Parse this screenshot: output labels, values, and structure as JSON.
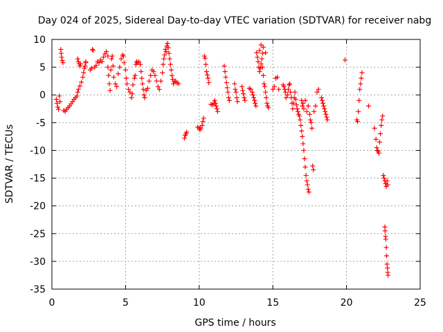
{
  "chart_data": {
    "type": "scatter",
    "title": "Day 024 of 2025, Sidereal Day-to-day VTEC variation (SDTVAR) for receiver nabg",
    "xlabel": "GPS time / hours",
    "ylabel": "SDTVAR / TECUs",
    "xlim": [
      0,
      25
    ],
    "ylim": [
      -35,
      10
    ],
    "xticks": [
      0,
      5,
      10,
      15,
      20,
      25
    ],
    "yticks": [
      -35,
      -30,
      -25,
      -20,
      -15,
      -10,
      -5,
      0,
      5,
      10
    ],
    "grid": true,
    "marker": "+",
    "color": "#ff0000",
    "series": [
      {
        "name": "SDTVAR",
        "points": [
          [
            0.3,
            -0.8
          ],
          [
            0.35,
            -1.5
          ],
          [
            0.4,
            -2.2
          ],
          [
            0.45,
            -2.6
          ],
          [
            0.5,
            -0.2
          ],
          [
            0.55,
            -1.2
          ],
          [
            0.6,
            8.2
          ],
          [
            0.63,
            7.5
          ],
          [
            0.66,
            6.8
          ],
          [
            0.7,
            6.2
          ],
          [
            0.75,
            5.8
          ],
          [
            0.8,
            -2.8
          ],
          [
            0.9,
            -3.0
          ],
          [
            1.0,
            -2.6
          ],
          [
            1.1,
            -2.3
          ],
          [
            1.2,
            -2.0
          ],
          [
            1.3,
            -1.6
          ],
          [
            1.4,
            -1.2
          ],
          [
            1.5,
            -0.8
          ],
          [
            1.6,
            -0.5
          ],
          [
            1.7,
            -0.2
          ],
          [
            1.75,
            6.5
          ],
          [
            1.8,
            6.0
          ],
          [
            1.85,
            5.6
          ],
          [
            1.9,
            5.2
          ],
          [
            1.95,
            5.6
          ],
          [
            1.75,
            0.5
          ],
          [
            1.8,
            1.0
          ],
          [
            1.9,
            1.6
          ],
          [
            2.0,
            2.3
          ],
          [
            2.1,
            3.2
          ],
          [
            2.15,
            4.0
          ],
          [
            2.2,
            4.8
          ],
          [
            2.25,
            5.2
          ],
          [
            2.3,
            5.8
          ],
          [
            2.3,
            6.0
          ],
          [
            2.6,
            4.5
          ],
          [
            2.7,
            4.8
          ],
          [
            2.75,
            8.2
          ],
          [
            2.8,
            8.0
          ],
          [
            2.9,
            5.0
          ],
          [
            3.0,
            5.3
          ],
          [
            3.1,
            6.0
          ],
          [
            3.2,
            5.8
          ],
          [
            3.3,
            6.3
          ],
          [
            3.4,
            6.0
          ],
          [
            3.5,
            6.8
          ],
          [
            3.6,
            7.4
          ],
          [
            3.7,
            7.8
          ],
          [
            3.8,
            7.0
          ],
          [
            3.8,
            5.0
          ],
          [
            3.85,
            3.5
          ],
          [
            3.9,
            2.0
          ],
          [
            3.95,
            0.8
          ],
          [
            4.0,
            4.5
          ],
          [
            4.05,
            6.5
          ],
          [
            4.1,
            7.0
          ],
          [
            4.15,
            5.2
          ],
          [
            4.2,
            3.2
          ],
          [
            4.3,
            2.0
          ],
          [
            4.4,
            1.5
          ],
          [
            4.5,
            3.8
          ],
          [
            4.6,
            5.0
          ],
          [
            4.7,
            6.5
          ],
          [
            4.8,
            7.2
          ],
          [
            4.85,
            7.0
          ],
          [
            4.9,
            5.8
          ],
          [
            5.0,
            4.5
          ],
          [
            5.05,
            3.0
          ],
          [
            5.1,
            2.0
          ],
          [
            5.2,
            1.0
          ],
          [
            5.3,
            0.5
          ],
          [
            5.4,
            -0.5
          ],
          [
            5.45,
            0.2
          ],
          [
            5.5,
            1.8
          ],
          [
            5.6,
            3.0
          ],
          [
            5.65,
            3.5
          ],
          [
            5.7,
            5.5
          ],
          [
            5.75,
            6.0
          ],
          [
            5.8,
            5.8
          ],
          [
            5.9,
            6.0
          ],
          [
            6.0,
            5.5
          ],
          [
            6.05,
            4.2
          ],
          [
            6.1,
            3.0
          ],
          [
            6.15,
            2.0
          ],
          [
            6.2,
            1.0
          ],
          [
            6.25,
            0.0
          ],
          [
            6.3,
            -0.5
          ],
          [
            6.4,
            0.8
          ],
          [
            6.5,
            1.2
          ],
          [
            6.6,
            2.5
          ],
          [
            6.7,
            3.5
          ],
          [
            6.8,
            4.5
          ],
          [
            6.9,
            4.2
          ],
          [
            7.0,
            3.5
          ],
          [
            7.1,
            2.5
          ],
          [
            7.2,
            1.5
          ],
          [
            7.3,
            1.0
          ],
          [
            7.4,
            2.5
          ],
          [
            7.5,
            4.0
          ],
          [
            7.55,
            5.5
          ],
          [
            7.6,
            6.5
          ],
          [
            7.65,
            7.2
          ],
          [
            7.7,
            8.2
          ],
          [
            7.75,
            7.8
          ],
          [
            7.8,
            8.8
          ],
          [
            7.85,
            9.3
          ],
          [
            7.9,
            8.5
          ],
          [
            7.95,
            7.5
          ],
          [
            8.0,
            6.5
          ],
          [
            8.05,
            5.5
          ],
          [
            8.1,
            4.5
          ],
          [
            8.15,
            3.5
          ],
          [
            8.2,
            2.8
          ],
          [
            8.25,
            2.0
          ],
          [
            8.3,
            2.4
          ],
          [
            8.4,
            2.5
          ],
          [
            8.5,
            2.2
          ],
          [
            8.6,
            2.0
          ],
          [
            9.0,
            -7.8
          ],
          [
            9.05,
            -7.3
          ],
          [
            9.1,
            -7.0
          ],
          [
            9.15,
            -6.7
          ],
          [
            9.9,
            -5.8
          ],
          [
            10.0,
            -6.0
          ],
          [
            10.05,
            -6.3
          ],
          [
            10.1,
            -6.0
          ],
          [
            10.2,
            -5.5
          ],
          [
            10.25,
            -4.8
          ],
          [
            10.3,
            -4.2
          ],
          [
            10.35,
            7.0
          ],
          [
            10.4,
            6.6
          ],
          [
            10.45,
            5.5
          ],
          [
            10.5,
            4.2
          ],
          [
            10.55,
            3.6
          ],
          [
            10.6,
            3.0
          ],
          [
            10.65,
            2.2
          ],
          [
            10.8,
            -1.7
          ],
          [
            10.9,
            -1.8
          ],
          [
            11.0,
            -1.5
          ],
          [
            11.05,
            -1.0
          ],
          [
            11.1,
            -1.5
          ],
          [
            11.15,
            -2.0
          ],
          [
            11.2,
            -2.5
          ],
          [
            11.25,
            -3.0
          ],
          [
            11.7,
            5.2
          ],
          [
            11.75,
            4.2
          ],
          [
            11.8,
            3.2
          ],
          [
            11.85,
            2.2
          ],
          [
            11.9,
            1.3
          ],
          [
            11.95,
            0.5
          ],
          [
            12.0,
            -0.5
          ],
          [
            12.05,
            -1.0
          ],
          [
            12.4,
            2.0
          ],
          [
            12.45,
            1.0
          ],
          [
            12.5,
            0.5
          ],
          [
            12.55,
            -0.5
          ],
          [
            12.6,
            -1.2
          ],
          [
            12.9,
            1.5
          ],
          [
            12.95,
            0.8
          ],
          [
            13.0,
            0.2
          ],
          [
            13.05,
            -0.5
          ],
          [
            13.1,
            -1.0
          ],
          [
            13.4,
            1.2
          ],
          [
            13.5,
            1.0
          ],
          [
            13.6,
            0.5
          ],
          [
            13.65,
            0.0
          ],
          [
            13.7,
            -0.5
          ],
          [
            13.75,
            -1.0
          ],
          [
            13.8,
            -1.5
          ],
          [
            13.85,
            -2.0
          ],
          [
            13.9,
            7.6
          ],
          [
            13.95,
            6.8
          ],
          [
            14.0,
            6.0
          ],
          [
            14.05,
            5.0
          ],
          [
            14.1,
            4.2
          ],
          [
            14.15,
            4.8
          ],
          [
            14.2,
            5.6
          ],
          [
            14.25,
            6.5
          ],
          [
            14.3,
            7.5
          ],
          [
            14.35,
            8.6
          ],
          [
            14.1,
            8.0
          ],
          [
            14.2,
            9.0
          ],
          [
            14.3,
            5.0
          ],
          [
            14.35,
            3.5
          ],
          [
            14.4,
            2.0
          ],
          [
            14.45,
            1.5
          ],
          [
            14.5,
            0.5
          ],
          [
            14.55,
            -0.5
          ],
          [
            14.6,
            -1.5
          ],
          [
            14.65,
            -2.0
          ],
          [
            14.7,
            -2.3
          ],
          [
            14.5,
            7.6
          ],
          [
            15.0,
            1.0
          ],
          [
            15.1,
            1.5
          ],
          [
            15.2,
            3.0
          ],
          [
            15.3,
            3.2
          ],
          [
            15.4,
            1.0
          ],
          [
            15.7,
            1.8
          ],
          [
            15.75,
            1.5
          ],
          [
            15.8,
            1.0
          ],
          [
            15.85,
            0.5
          ],
          [
            15.9,
            -0.5
          ],
          [
            16.0,
            0.0
          ],
          [
            16.05,
            1.0
          ],
          [
            16.1,
            1.8
          ],
          [
            16.15,
            2.0
          ],
          [
            16.2,
            0.5
          ],
          [
            16.25,
            -0.5
          ],
          [
            16.3,
            -1.5
          ],
          [
            16.35,
            -2.5
          ],
          [
            16.4,
            -1.5
          ],
          [
            16.45,
            -0.5
          ],
          [
            16.5,
            0.5
          ],
          [
            16.55,
            -0.8
          ],
          [
            16.6,
            -1.8
          ],
          [
            16.65,
            -2.5
          ],
          [
            16.7,
            -3.0
          ],
          [
            16.75,
            -3.5
          ],
          [
            16.8,
            -3.8
          ],
          [
            16.85,
            -4.5
          ],
          [
            16.9,
            -5.5
          ],
          [
            16.95,
            -6.5
          ],
          [
            17.0,
            -7.5
          ],
          [
            17.05,
            -8.8
          ],
          [
            17.1,
            -10.0
          ],
          [
            17.15,
            -11.5
          ],
          [
            17.2,
            -13.0
          ],
          [
            17.25,
            -14.5
          ],
          [
            17.3,
            -15.5
          ],
          [
            17.35,
            -16.2
          ],
          [
            17.4,
            -17.0
          ],
          [
            17.45,
            -17.5
          ],
          [
            16.95,
            -1.0
          ],
          [
            17.0,
            -2.0
          ],
          [
            17.05,
            -1.5
          ],
          [
            17.1,
            -2.5
          ],
          [
            17.2,
            -1.0
          ],
          [
            17.3,
            -3.0
          ],
          [
            17.4,
            -2.0
          ],
          [
            17.5,
            -3.5
          ],
          [
            17.55,
            -4.5
          ],
          [
            17.6,
            -5.0
          ],
          [
            17.65,
            -6.0
          ],
          [
            17.7,
            -12.8
          ],
          [
            17.75,
            -13.5
          ],
          [
            17.8,
            -3.0
          ],
          [
            17.9,
            -2.0
          ],
          [
            18.0,
            0.5
          ],
          [
            18.1,
            1.0
          ],
          [
            18.3,
            -0.5
          ],
          [
            18.35,
            -1.0
          ],
          [
            18.4,
            -1.5
          ],
          [
            18.45,
            -2.0
          ],
          [
            18.5,
            -2.5
          ],
          [
            18.55,
            -3.0
          ],
          [
            18.6,
            -3.5
          ],
          [
            18.65,
            -4.0
          ],
          [
            18.7,
            -4.5
          ],
          [
            19.9,
            6.3
          ],
          [
            20.7,
            -4.5
          ],
          [
            20.75,
            -4.8
          ],
          [
            20.8,
            -3.0
          ],
          [
            20.85,
            -1.0
          ],
          [
            20.9,
            1.0
          ],
          [
            20.95,
            2.0
          ],
          [
            21.0,
            3.0
          ],
          [
            21.05,
            4.0
          ],
          [
            21.5,
            -2.0
          ],
          [
            21.9,
            -6.0
          ],
          [
            22.0,
            -8.0
          ],
          [
            22.05,
            -9.5
          ],
          [
            22.1,
            -10.0
          ],
          [
            22.15,
            -10.2
          ],
          [
            22.2,
            -10.5
          ],
          [
            22.25,
            -8.5
          ],
          [
            22.3,
            -7.0
          ],
          [
            22.35,
            -5.5
          ],
          [
            22.4,
            -4.5
          ],
          [
            22.45,
            -3.8
          ],
          [
            22.5,
            -14.5
          ],
          [
            22.55,
            -15.0
          ],
          [
            22.6,
            -15.5
          ],
          [
            22.65,
            -16.0
          ],
          [
            22.7,
            -16.5
          ],
          [
            22.75,
            -15.5
          ],
          [
            22.8,
            -16.2
          ],
          [
            22.6,
            -23.8
          ],
          [
            22.62,
            -24.5
          ],
          [
            22.65,
            -25.5
          ],
          [
            22.67,
            -26.0
          ],
          [
            22.7,
            -27.5
          ],
          [
            22.72,
            -29.0
          ],
          [
            22.75,
            -30.5
          ],
          [
            22.78,
            -31.2
          ],
          [
            22.8,
            -32.0
          ],
          [
            22.82,
            -32.5
          ]
        ]
      }
    ]
  }
}
